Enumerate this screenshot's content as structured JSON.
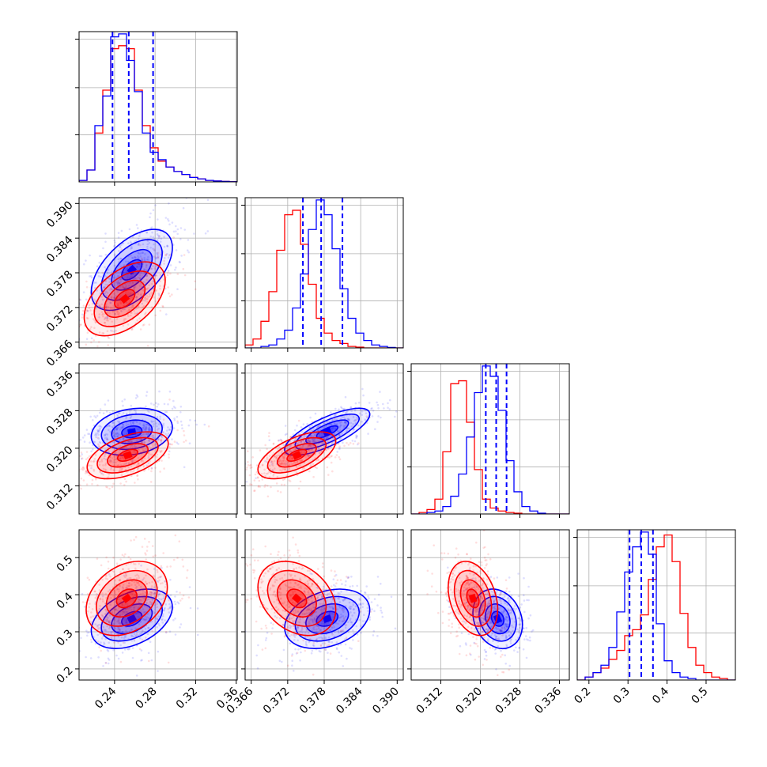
{
  "chart_data": {
    "type": "corner",
    "title": "",
    "grid": true,
    "legend": "none",
    "colors": {
      "series_a": "#0000ff",
      "series_b": "#ff0000",
      "grid": "#b0b0b0"
    },
    "series": [
      {
        "color": "#0000ff",
        "quantiles": [
          [
            0.238,
            0.254,
            0.278
          ],
          [
            0.3745,
            0.3775,
            0.381
          ],
          [
            0.3211,
            0.3232,
            0.3253
          ],
          [
            0.304,
            0.334,
            0.364
          ]
        ]
      },
      {
        "color": "#ff0000"
      }
    ],
    "parameters": [
      {
        "range": [
          0.205,
          0.361
        ],
        "ticks": [
          0.24,
          0.28,
          0.32,
          0.36
        ],
        "tick_labels": [
          "0.24",
          "0.28",
          "0.32",
          "0.36"
        ]
      },
      {
        "range": [
          0.365,
          0.391
        ],
        "ticks": [
          0.366,
          0.372,
          0.378,
          0.384,
          0.39
        ],
        "tick_labels": [
          "0.366",
          "0.372",
          "0.378",
          "0.384",
          "0.390"
        ]
      },
      {
        "range": [
          0.306,
          0.338
        ],
        "ticks": [
          0.312,
          0.32,
          0.328,
          0.336
        ],
        "tick_labels": [
          "0.312",
          "0.320",
          "0.328",
          "0.336"
        ]
      },
      {
        "range": [
          0.17,
          0.575
        ],
        "ticks": [
          0.2,
          0.3,
          0.4,
          0.5
        ],
        "tick_labels": [
          "0.2",
          "0.3",
          "0.4",
          "0.5"
        ]
      }
    ],
    "histograms": [
      {
        "param": 0,
        "bin_edges": [
          0.205,
          0.2128,
          0.2206,
          0.2284,
          0.2362,
          0.244,
          0.2518,
          0.2596,
          0.2674,
          0.2752,
          0.283,
          0.2908,
          0.2986,
          0.3064,
          0.3142,
          0.322,
          0.3298,
          0.3376,
          0.3454,
          0.3532,
          0.361
        ],
        "counts": [
          [
            0.01,
            0.08,
            0.38,
            0.58,
            0.98,
            1.0,
            0.82,
            0.61,
            0.33,
            0.2,
            0.15,
            0.1,
            0.07,
            0.05,
            0.03,
            0.02,
            0.01,
            0.006,
            0.003,
            0.001
          ],
          [
            0.01,
            0.08,
            0.33,
            0.62,
            0.9,
            0.92,
            0.9,
            0.62,
            0.38,
            0.23,
            0.14,
            0.1,
            0.07,
            0.05,
            0.03,
            0.02,
            0.01,
            0.006,
            0.003,
            0.001
          ]
        ]
      },
      {
        "param": 1,
        "bin_edges": [
          0.365,
          0.3663,
          0.3676,
          0.3689,
          0.3702,
          0.3715,
          0.3728,
          0.3741,
          0.3754,
          0.3767,
          0.378,
          0.3793,
          0.3806,
          0.3819,
          0.3832,
          0.3845,
          0.3858,
          0.3871,
          0.3884,
          0.3897,
          0.391
        ],
        "counts": [
          [
            0.0,
            0.0,
            0.01,
            0.02,
            0.06,
            0.12,
            0.27,
            0.5,
            0.8,
            1.0,
            0.9,
            0.67,
            0.4,
            0.2,
            0.1,
            0.05,
            0.02,
            0.01,
            0.003,
            0.0
          ],
          [
            0.02,
            0.06,
            0.18,
            0.38,
            0.66,
            0.9,
            0.93,
            0.7,
            0.43,
            0.2,
            0.1,
            0.05,
            0.03,
            0.01,
            0.005,
            0.0,
            0.0,
            0.0,
            0.0,
            0.0
          ]
        ]
      },
      {
        "param": 2,
        "bin_edges": [
          0.306,
          0.3076,
          0.3092,
          0.3108,
          0.3124,
          0.314,
          0.3156,
          0.3172,
          0.3188,
          0.3204,
          0.322,
          0.3236,
          0.3252,
          0.3268,
          0.3284,
          0.33,
          0.3316,
          0.3332,
          0.3348,
          0.3364,
          0.338
        ],
        "counts": [
          [
            0.0,
            0.0,
            0.01,
            0.02,
            0.05,
            0.12,
            0.27,
            0.52,
            0.82,
            1.0,
            0.93,
            0.7,
            0.36,
            0.15,
            0.05,
            0.02,
            0.005,
            0.0,
            0.0,
            0.0
          ],
          [
            0.0,
            0.01,
            0.03,
            0.1,
            0.42,
            0.88,
            0.9,
            0.62,
            0.3,
            0.1,
            0.04,
            0.02,
            0.01,
            0.005,
            0.0,
            0.0,
            0.0,
            0.0,
            0.0,
            0.0
          ]
        ]
      },
      {
        "param": 3,
        "bin_edges": [
          0.17,
          0.19025,
          0.2105,
          0.23075,
          0.251,
          0.27125,
          0.2915,
          0.31175,
          0.332,
          0.35225,
          0.3725,
          0.39275,
          0.413,
          0.43325,
          0.4535,
          0.47375,
          0.494,
          0.51425,
          0.5345,
          0.55475,
          0.575
        ],
        "counts": [
          [
            0.0,
            0.02,
            0.05,
            0.1,
            0.22,
            0.46,
            0.73,
            0.9,
            1.0,
            0.85,
            0.38,
            0.13,
            0.05,
            0.02,
            0.01,
            0.0,
            0.0,
            0.0,
            0.0,
            0.0
          ],
          [
            0.0,
            0.02,
            0.05,
            0.08,
            0.14,
            0.2,
            0.3,
            0.34,
            0.44,
            0.68,
            0.9,
            0.98,
            0.8,
            0.45,
            0.22,
            0.1,
            0.05,
            0.02,
            0.01,
            0.0
          ]
        ]
      }
    ],
    "pair_distributions": [
      {
        "x": 0,
        "y": 1,
        "centers": [
          [
            0.257,
            0.3785
          ],
          [
            0.25,
            0.3735
          ]
        ],
        "sigma": [
          [
            0.02,
            0.0035
          ],
          [
            0.02,
            0.0032
          ]
        ],
        "rho": [
          0.55,
          0.5
        ]
      },
      {
        "x": 0,
        "y": 2,
        "centers": [
          [
            0.257,
            0.3235
          ],
          [
            0.253,
            0.3185
          ]
        ],
        "sigma": [
          [
            0.02,
            0.0025
          ],
          [
            0.02,
            0.0025
          ]
        ],
        "rho": [
          0.2,
          0.5
        ]
      },
      {
        "x": 1,
        "y": 2,
        "centers": [
          [
            0.3785,
            0.3235
          ],
          [
            0.3735,
            0.3185
          ]
        ],
        "sigma": [
          [
            0.0035,
            0.0025
          ],
          [
            0.0032,
            0.0025
          ]
        ],
        "rho": [
          0.75,
          0.6
        ]
      },
      {
        "x": 0,
        "y": 3,
        "centers": [
          [
            0.257,
            0.335
          ],
          [
            0.252,
            0.39
          ]
        ],
        "sigma": [
          [
            0.02,
            0.04
          ],
          [
            0.02,
            0.05
          ]
        ],
        "rho": [
          0.4,
          0.3
        ]
      },
      {
        "x": 1,
        "y": 3,
        "centers": [
          [
            0.3785,
            0.335
          ],
          [
            0.3735,
            0.39
          ]
        ],
        "sigma": [
          [
            0.0035,
            0.04
          ],
          [
            0.0032,
            0.05
          ]
        ],
        "rho": [
          0.3,
          -0.3
        ]
      },
      {
        "x": 2,
        "y": 3,
        "centers": [
          [
            0.3235,
            0.335
          ],
          [
            0.3185,
            0.39
          ]
        ],
        "sigma": [
          [
            0.0025,
            0.04
          ],
          [
            0.0025,
            0.05
          ]
        ],
        "rho": [
          -0.2,
          -0.3
        ]
      }
    ]
  }
}
